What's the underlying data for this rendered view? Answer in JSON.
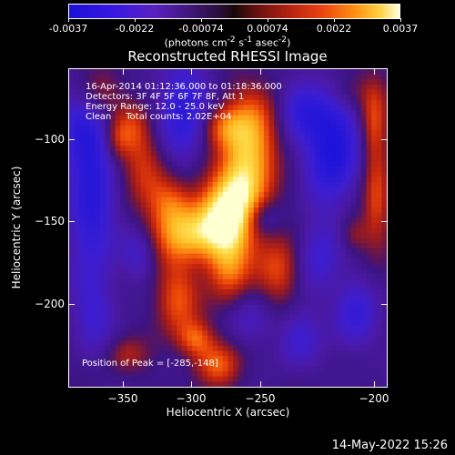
{
  "colorbar": {
    "tick_labels": [
      "-0.0037",
      "-0.0022",
      "-0.00074",
      "0.00074",
      "0.0022",
      "0.0037"
    ],
    "units_html": "(photons cm<sup>-2</sup> s<sup>-1</sup> asec<sup>-2</sup>)",
    "units": "(photons cm-2 s-1 asec-2)"
  },
  "title": "Reconstructed RHESSI Image",
  "annotation": {
    "line1": "16-Apr-2014 01:12:36.000 to 01:18:36.000",
    "line2": "Detectors: 3F 4F 5F 6F 7F 8F, Att 1",
    "line3": "Energy Range: 12.0 - 25.0 keV",
    "line4": "Clean     Total counts: 2.02E+04",
    "peak": "Position of Peak = [-285,-148]"
  },
  "axes": {
    "xlabel": "Heliocentric X (arcsec)",
    "ylabel": "Heliocentric Y (arcsec)",
    "xticks": [
      "−350",
      "−300",
      "−250",
      "−200"
    ],
    "yticks": [
      "−100",
      "−150",
      "−200"
    ]
  },
  "timestamp": "14-May-2022 15:26"
}
